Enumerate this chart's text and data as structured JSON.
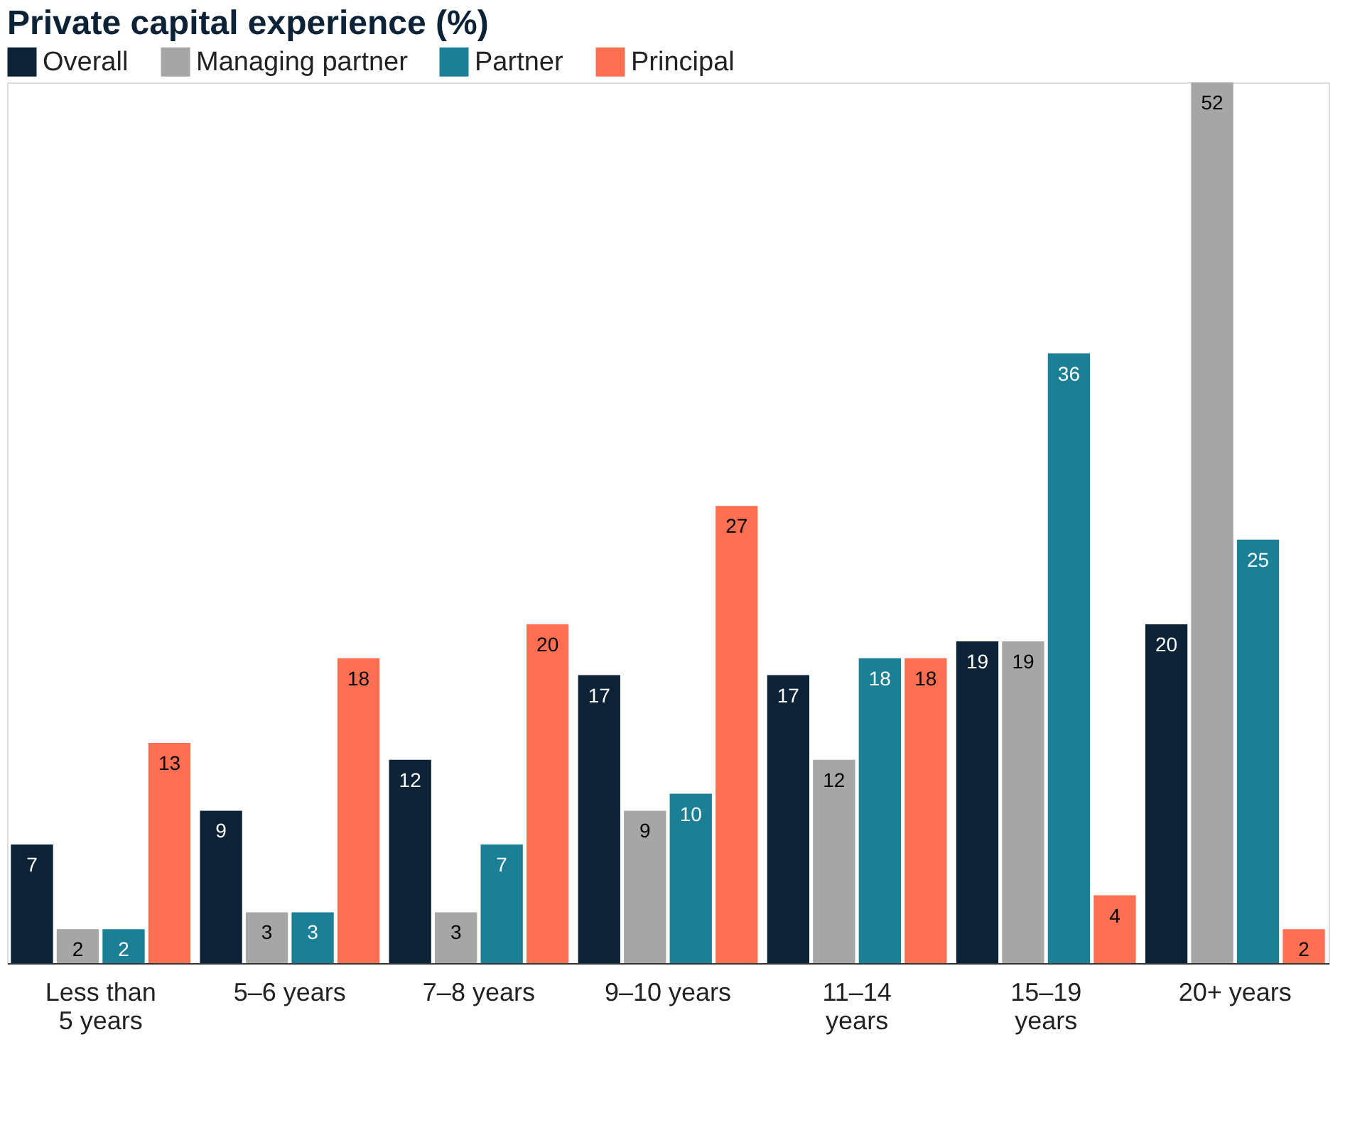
{
  "chart_data": {
    "type": "bar",
    "title": "Private capital experience (%)",
    "categories": [
      "Less than 5 years",
      "5–6 years",
      "7–8 years",
      "9–10 years",
      "11–14 years",
      "15–19 years",
      "20+ years"
    ],
    "series": [
      {
        "name": "Overall",
        "color": "#0b2237",
        "values": [
          7,
          9,
          12,
          17,
          17,
          19,
          20
        ]
      },
      {
        "name": "Managing partner",
        "color": "#a6a6a6",
        "values": [
          2,
          3,
          3,
          9,
          12,
          19,
          52
        ]
      },
      {
        "name": "Partner",
        "color": "#1b7f96",
        "values": [
          2,
          3,
          7,
          10,
          18,
          36,
          25
        ]
      },
      {
        "name": "Principal",
        "color": "#ff6f52",
        "values": [
          13,
          18,
          20,
          27,
          18,
          4,
          2
        ]
      }
    ],
    "data_labels": true,
    "legend": "top left",
    "grid": false
  }
}
